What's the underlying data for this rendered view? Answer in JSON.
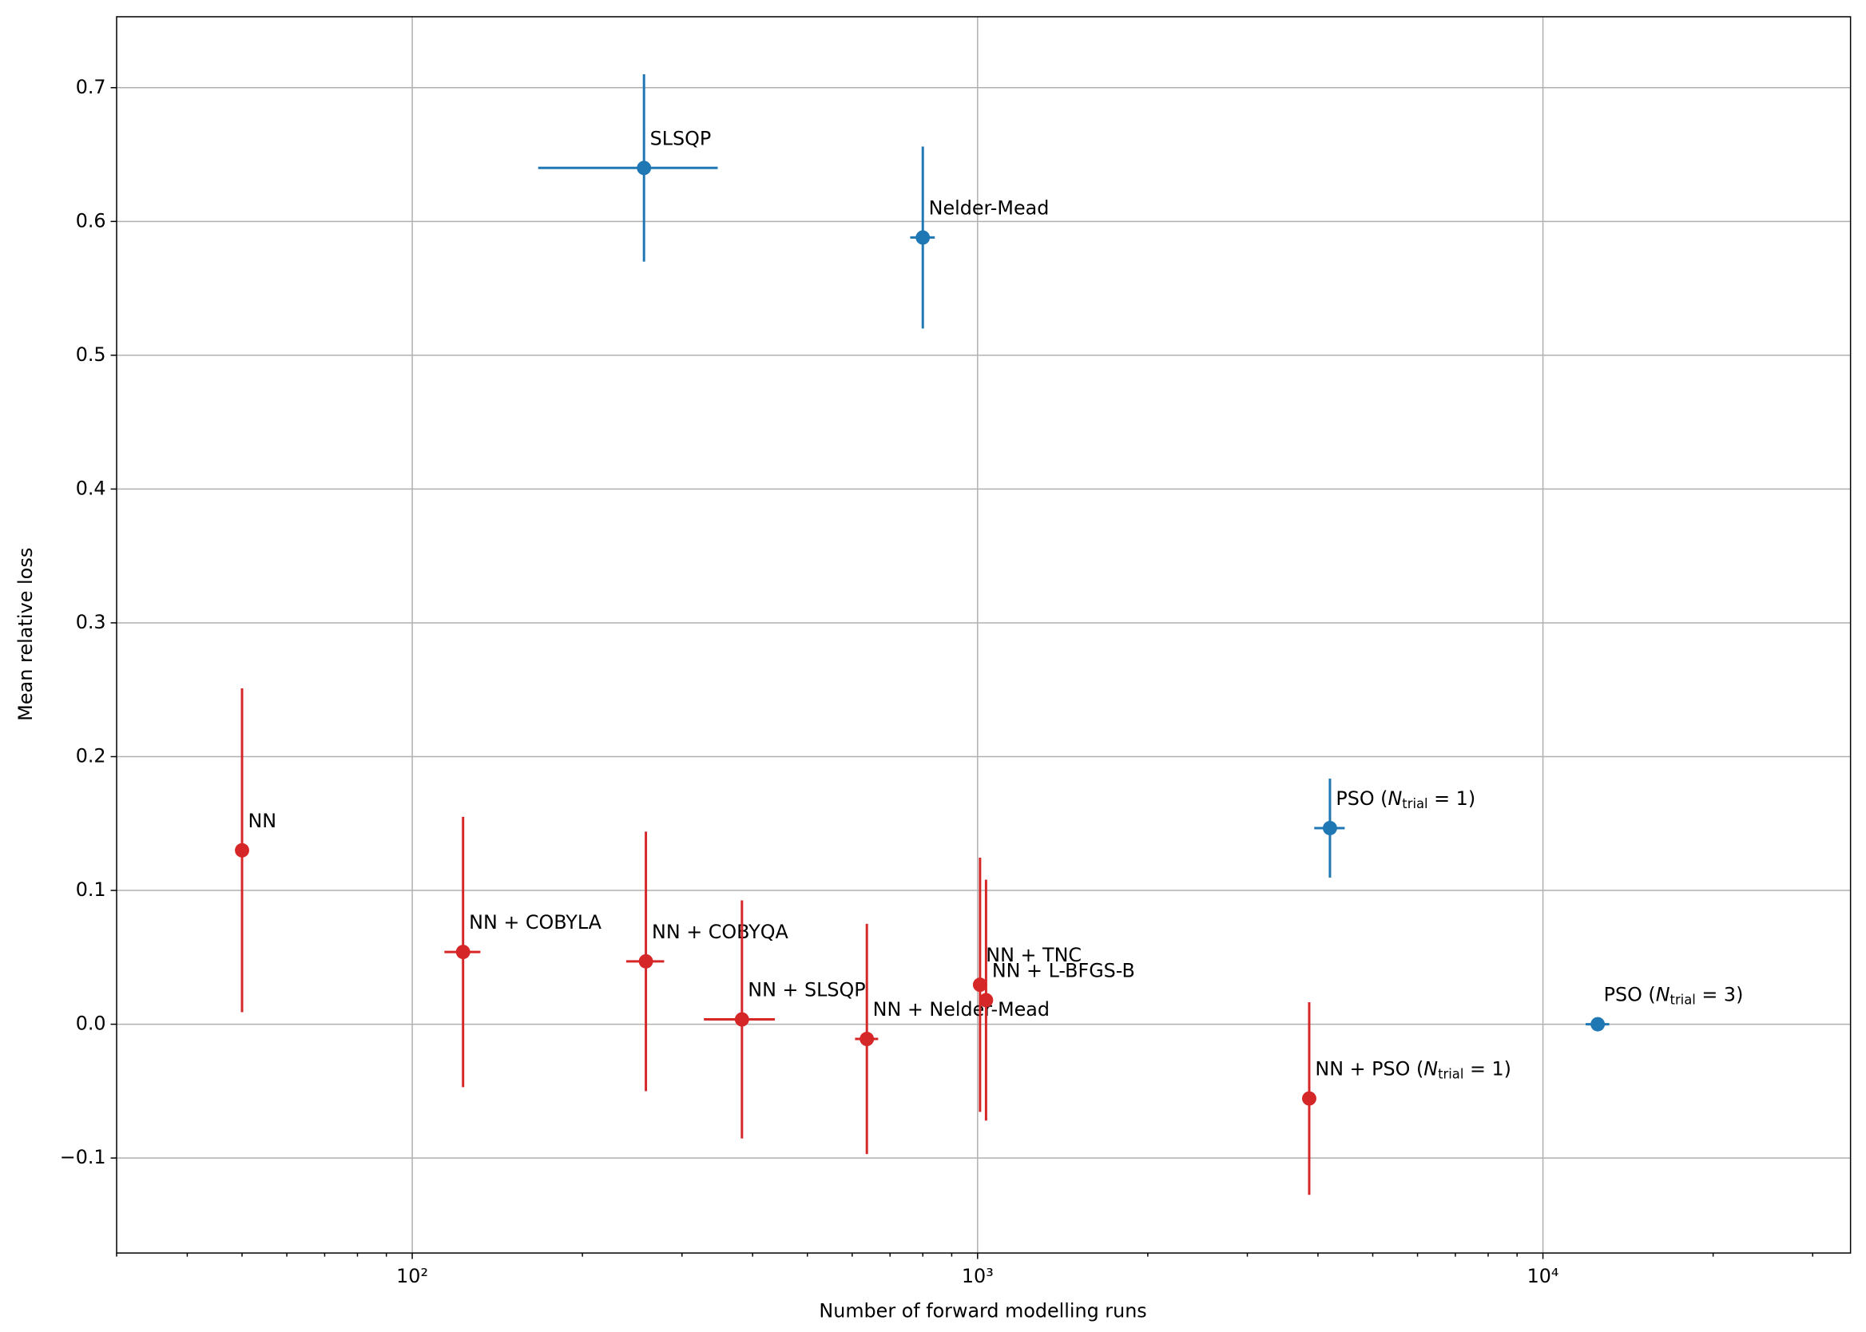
{
  "chart_data": {
    "type": "scatter",
    "xlabel": "Number of forward modelling runs",
    "ylabel": "Mean relative loss",
    "xscale": "log",
    "grid": true,
    "xlim": [
      30,
      35000
    ],
    "ylim": [
      -0.171,
      0.753
    ],
    "xticks": [
      {
        "value": 100,
        "label": "10²"
      },
      {
        "value": 1000,
        "label": "10³"
      },
      {
        "value": 10000,
        "label": "10⁴"
      }
    ],
    "xminorticks": [
      30,
      40,
      50,
      60,
      70,
      80,
      90,
      200,
      300,
      400,
      500,
      600,
      700,
      800,
      900,
      2000,
      3000,
      4000,
      5000,
      6000,
      7000,
      8000,
      9000,
      20000,
      30000
    ],
    "yticks": [
      {
        "value": -0.1,
        "label": "−0.1"
      },
      {
        "value": 0,
        "label": "0.0"
      },
      0.1,
      0.2,
      0.3,
      0.4,
      0.5,
      0.6,
      0.7
    ],
    "series": [
      {
        "color": "#1f77b4",
        "labels": [
          "SLSQP",
          "Nelder-Mead",
          [
            "PSO (",
            "N",
            "trial",
            " = 1)"
          ],
          [
            "PSO (",
            "N",
            "trial",
            " = 3)"
          ]
        ],
        "x": [
          257,
          800,
          4200,
          12500
        ],
        "values": [
          0.64,
          0.588,
          0.1466,
          0
        ],
        "xerr": [
          90,
          40,
          260,
          600
        ],
        "yerr": [
          0.07,
          0.068,
          0.037,
          0
        ]
      },
      {
        "color": "#d62728",
        "labels": [
          "NN",
          "NN + COBYLA",
          "NN + COBYQA",
          "NN + SLSQP",
          "NN + Nelder-Mead",
          "NN + TNC",
          "NN + L-BFGS-B",
          [
            "NN + PSO (",
            "N",
            "trial",
            " = 1)"
          ]
        ],
        "x": [
          50,
          123,
          259,
          383,
          637,
          1010,
          1035,
          3860
        ],
        "values": [
          0.13,
          0.054,
          0.047,
          0.0036,
          -0.011,
          0.0295,
          0.018,
          -0.0555
        ],
        "xerr": [
          0,
          9,
          20,
          55,
          30,
          0,
          25,
          0
        ],
        "yerr": [
          0.121,
          0.101,
          0.097,
          0.089,
          0.086,
          0.095,
          0.09,
          0.072
        ]
      }
    ]
  }
}
